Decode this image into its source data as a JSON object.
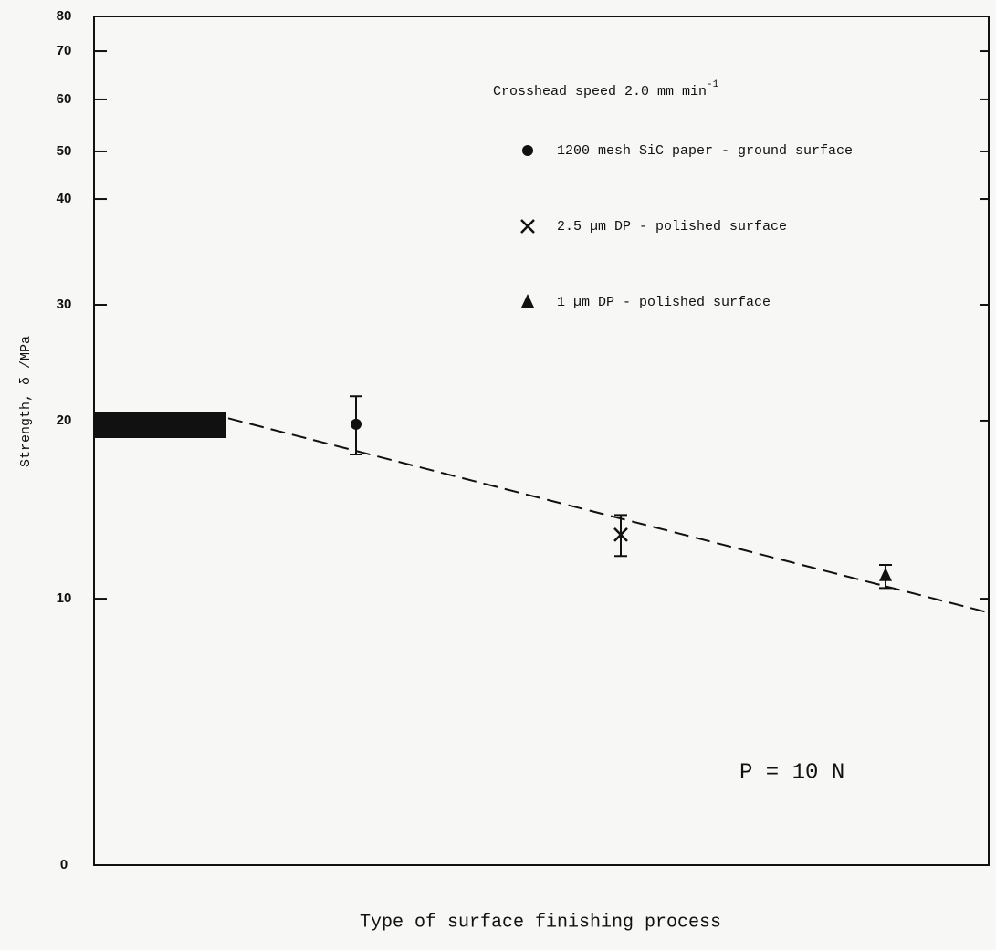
{
  "chart_data": {
    "type": "scatter",
    "annotations": {
      "speed": "Crosshead speed 2.0 mm min",
      "speed_sup": "-1",
      "load": "P = 10 N"
    },
    "x_label": "Type of surface finishing process",
    "y_label": "Strength, δ /MPa",
    "categories": [
      null,
      null,
      null
    ],
    "series": [
      {
        "name": "1200 mesh SiC paper - ground surface",
        "marker": "circle",
        "color": "#111111",
        "values": [
          19.8,
          null,
          null
        ],
        "upper": [
          22.1,
          null,
          null
        ],
        "lower": [
          18.1,
          null,
          null
        ]
      },
      {
        "name": "2.5 µm DP - polished surface",
        "marker": "cross",
        "color": "#111111",
        "values": [
          null,
          13.6,
          null
        ],
        "upper": [
          null,
          14.7,
          null
        ],
        "lower": [
          null,
          12.4,
          null
        ]
      },
      {
        "name": "1 µm DP - polished surface",
        "marker": "triangle",
        "color": "#111111",
        "values": [
          null,
          null,
          11.3
        ],
        "upper": [
          null,
          null,
          11.9
        ],
        "lower": [
          null,
          null,
          10.6
        ]
      }
    ],
    "trend_values": [
      18.3,
      14.5,
      10.7
    ],
    "ylim": [
      0,
      80
    ],
    "yticks": [
      0,
      10,
      20,
      30,
      40,
      50,
      60,
      70,
      80
    ]
  }
}
